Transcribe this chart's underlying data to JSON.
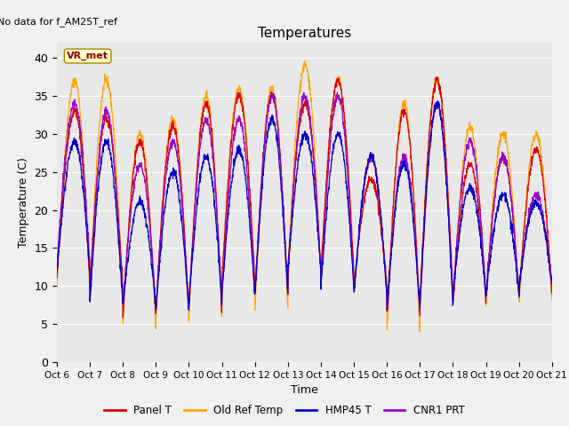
{
  "title": "Temperatures",
  "xlabel": "Time",
  "ylabel": "Temperature (C)",
  "note": "No data for f_AM25T_ref",
  "annotation": "VR_met",
  "ylim": [
    0,
    42
  ],
  "yticks": [
    0,
    5,
    10,
    15,
    20,
    25,
    30,
    35,
    40
  ],
  "xtick_labels": [
    "Oct 6",
    "Oct 7",
    "Oct 8",
    "Oct 9",
    "Oct 10",
    "Oct 11",
    "Oct 12",
    "Oct 13",
    "Oct 14",
    "Oct 15",
    "Oct 16",
    "Oct 17",
    "Oct 18",
    "Oct 19",
    "Oct 20",
    "Oct 21"
  ],
  "series_colors": {
    "Panel T": "#dd0000",
    "Old Ref Temp": "#ffa500",
    "HMP45 T": "#0000cc",
    "CNR1 PRT": "#9900cc"
  },
  "background_color": "#e8e8e8",
  "fig_background": "#f0f0f0",
  "n_days": 15,
  "points_per_day": 144,
  "day_mins_orange": [
    10,
    9.5,
    5,
    6,
    6,
    9,
    7,
    12,
    11,
    9,
    4,
    8,
    7.5,
    8.5,
    8
  ],
  "day_mins_red": [
    11,
    10,
    6,
    7,
    7,
    11,
    9,
    12,
    12,
    10,
    6,
    9,
    8,
    9,
    9
  ],
  "day_mins_blue": [
    12,
    8,
    7.5,
    7,
    8,
    9,
    9,
    12,
    10,
    9,
    7,
    8,
    9,
    9,
    10
  ],
  "day_mins_purple": [
    13,
    8,
    7.5,
    7,
    8,
    9,
    9,
    12,
    10,
    9,
    7,
    8,
    9,
    9,
    10
  ],
  "day_maxs_orange": [
    37,
    37,
    30,
    32,
    35,
    36,
    36,
    39,
    37,
    27,
    34,
    37,
    31,
    30,
    30
  ],
  "day_maxs_red": [
    33,
    32,
    29,
    31,
    34,
    35,
    35,
    34,
    37,
    24,
    33,
    37,
    26,
    27,
    28
  ],
  "day_maxs_blue": [
    29,
    29,
    21,
    25,
    27,
    28,
    32,
    30,
    30,
    27,
    26,
    34,
    23,
    22,
    21
  ],
  "day_maxs_purple": [
    34,
    33,
    26,
    29,
    32,
    32,
    35,
    35,
    35,
    27,
    27,
    34,
    29,
    27,
    22
  ],
  "peak_positions": [
    0.55,
    0.5,
    0.52,
    0.52,
    0.53,
    0.52,
    0.52,
    0.52,
    0.52,
    0.52,
    0.52,
    0.52,
    0.52,
    0.52,
    0.52
  ]
}
